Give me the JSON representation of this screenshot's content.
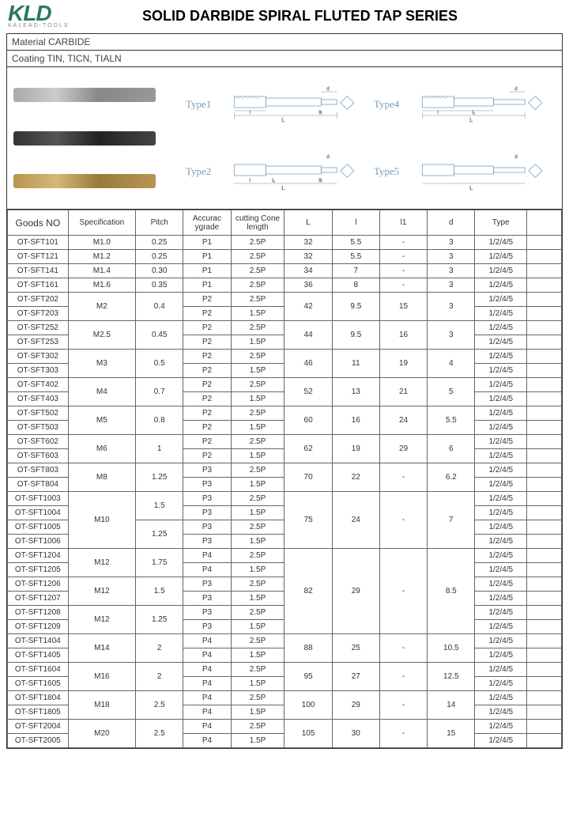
{
  "logo": {
    "main": "KLD",
    "sub": "KALEAD-TOOLS"
  },
  "title": "SOLID DARBIDE SPIRAL FLUTED TAP SERIES",
  "material": "Material  CARBIDE",
  "coating": "Coating  TIN,  TICN,  TIALN",
  "typeLabels": [
    "Type1",
    "Type4",
    "Type2",
    "Type5"
  ],
  "diagram_colors": {
    "schematic_stroke": "#7aa0c0",
    "dim_stroke": "#888"
  },
  "table": {
    "headers": [
      "Goods NO",
      "Specification",
      "Pitch",
      "Accurac ygrade",
      "cutting Cone length",
      "L",
      "l",
      "l1",
      "d",
      "Type",
      ""
    ],
    "col_classes": [
      "col-goods",
      "col-spec",
      "col-pitch",
      "col-acc",
      "col-cut",
      "col-L",
      "col-l",
      "col-l1",
      "col-d",
      "col-type",
      "col-last"
    ],
    "rows": [
      {
        "cells": [
          "OT-SFT101",
          "M1.0",
          "0.25",
          "P1",
          "2.5P",
          "32",
          "5.5",
          "-",
          "3",
          "1/2/4/5",
          ""
        ]
      },
      {
        "cells": [
          "OT-SFT121",
          "M1.2",
          "0.25",
          "P1",
          "2.5P",
          "32",
          "5.5",
          "-",
          "3",
          "1/2/4/5",
          ""
        ]
      },
      {
        "cells": [
          "OT-SFT141",
          "M1.4",
          "0.30",
          "P1",
          "2.5P",
          "34",
          "7",
          "-",
          "3",
          "1/2/4/5",
          ""
        ]
      },
      {
        "cells": [
          "OT-SFT161",
          "M1.6",
          "0.35",
          "P1",
          "2.5P",
          "36",
          "8",
          "-",
          "3",
          "1/2/4/5",
          ""
        ]
      },
      {
        "cells": [
          "OT-SFT202",
          {
            "v": "M2",
            "rs": 2
          },
          {
            "v": "0.4",
            "rs": 2
          },
          "P2",
          "2.5P",
          {
            "v": "42",
            "rs": 2
          },
          {
            "v": "9.5",
            "rs": 2
          },
          {
            "v": "15",
            "rs": 2
          },
          {
            "v": "3",
            "rs": 2
          },
          "1/2/4/5",
          ""
        ]
      },
      {
        "cells": [
          "OT-SFT203",
          null,
          null,
          "P2",
          "1.5P",
          null,
          null,
          null,
          null,
          "1/2/4/5",
          ""
        ]
      },
      {
        "cells": [
          "OT-SFT252",
          {
            "v": "M2.5",
            "rs": 2
          },
          {
            "v": "0.45",
            "rs": 2
          },
          "P2",
          "2.5P",
          {
            "v": "44",
            "rs": 2
          },
          {
            "v": "9.5",
            "rs": 2
          },
          {
            "v": "16",
            "rs": 2
          },
          {
            "v": "3",
            "rs": 2
          },
          "1/2/4/5",
          ""
        ]
      },
      {
        "cells": [
          "OT-SFT253",
          null,
          null,
          "P2",
          "1.5P",
          null,
          null,
          null,
          null,
          "1/2/4/5",
          ""
        ]
      },
      {
        "cells": [
          "OT-SFT302",
          {
            "v": "M3",
            "rs": 2
          },
          {
            "v": "0.5",
            "rs": 2
          },
          "P2",
          "2.5P",
          {
            "v": "46",
            "rs": 2
          },
          {
            "v": "11",
            "rs": 2
          },
          {
            "v": "19",
            "rs": 2
          },
          {
            "v": "4",
            "rs": 2
          },
          "1/2/4/5",
          ""
        ]
      },
      {
        "cells": [
          "OT-SFT303",
          null,
          null,
          "P2",
          "1.5P",
          null,
          null,
          null,
          null,
          "1/2/4/5",
          ""
        ]
      },
      {
        "cells": [
          "OT-SFT402",
          {
            "v": "M4",
            "rs": 2
          },
          {
            "v": "0.7",
            "rs": 2
          },
          "P2",
          "2.5P",
          {
            "v": "52",
            "rs": 2
          },
          {
            "v": "13",
            "rs": 2
          },
          {
            "v": "21",
            "rs": 2
          },
          {
            "v": "5",
            "rs": 2
          },
          "1/2/4/5",
          ""
        ]
      },
      {
        "cells": [
          "OT-SFT403",
          null,
          null,
          "P2",
          "1.5P",
          null,
          null,
          null,
          null,
          "1/2/4/5",
          ""
        ]
      },
      {
        "cells": [
          "OT-SFT502",
          {
            "v": "M5",
            "rs": 2
          },
          {
            "v": "0.8",
            "rs": 2
          },
          "P2",
          "2.5P",
          {
            "v": "60",
            "rs": 2
          },
          {
            "v": "16",
            "rs": 2
          },
          {
            "v": "24",
            "rs": 2
          },
          {
            "v": "5.5",
            "rs": 2
          },
          "1/2/4/5",
          ""
        ]
      },
      {
        "cells": [
          "OT-SFT503",
          null,
          null,
          "P2",
          "1.5P",
          null,
          null,
          null,
          null,
          "1/2/4/5",
          ""
        ]
      },
      {
        "cells": [
          "OT-SFT602",
          {
            "v": "M6",
            "rs": 2
          },
          {
            "v": "1",
            "rs": 2
          },
          "P2",
          "2.5P",
          {
            "v": "62",
            "rs": 2
          },
          {
            "v": "19",
            "rs": 2
          },
          {
            "v": "29",
            "rs": 2
          },
          {
            "v": "6",
            "rs": 2
          },
          "1/2/4/5",
          ""
        ]
      },
      {
        "cells": [
          "OT-SFT603",
          null,
          null,
          "P2",
          "1.5P",
          null,
          null,
          null,
          null,
          "1/2/4/5",
          ""
        ]
      },
      {
        "cells": [
          "OT-SFT803",
          {
            "v": "M8",
            "rs": 2
          },
          {
            "v": "1.25",
            "rs": 2
          },
          "P3",
          "2.5P",
          {
            "v": "70",
            "rs": 2
          },
          {
            "v": "22",
            "rs": 2
          },
          {
            "v": "-",
            "rs": 2
          },
          {
            "v": "6.2",
            "rs": 2
          },
          "1/2/4/5",
          ""
        ]
      },
      {
        "cells": [
          "OT-SFT804",
          null,
          null,
          "P3",
          "1.5P",
          null,
          null,
          null,
          null,
          "1/2/4/5",
          ""
        ]
      },
      {
        "cells": [
          "OT-SFT1003",
          {
            "v": "M10",
            "rs": 4
          },
          {
            "v": "1.5",
            "rs": 2
          },
          "P3",
          "2.5P",
          {
            "v": "75",
            "rs": 4
          },
          {
            "v": "24",
            "rs": 4
          },
          {
            "v": "-",
            "rs": 4
          },
          {
            "v": "7",
            "rs": 4
          },
          "1/2/4/5",
          ""
        ]
      },
      {
        "cells": [
          "OT-SFT1004",
          null,
          null,
          "P3",
          "1.5P",
          null,
          null,
          null,
          null,
          "1/2/4/5",
          ""
        ]
      },
      {
        "cells": [
          "OT-SFT1005",
          null,
          {
            "v": "1.25",
            "rs": 2
          },
          "P3",
          "2.5P",
          null,
          null,
          null,
          null,
          "1/2/4/5",
          ""
        ]
      },
      {
        "cells": [
          "OT-SFT1006",
          null,
          null,
          "P3",
          "1.5P",
          null,
          null,
          null,
          null,
          "1/2/4/5",
          ""
        ]
      },
      {
        "cells": [
          "OT-SFT1204",
          {
            "v": "M12",
            "rs": 2
          },
          {
            "v": "1.75",
            "rs": 2
          },
          "P4",
          "2.5P",
          {
            "v": "82",
            "rs": 6
          },
          {
            "v": "29",
            "rs": 6
          },
          {
            "v": "-",
            "rs": 6
          },
          {
            "v": "8.5",
            "rs": 6
          },
          "1/2/4/5",
          ""
        ]
      },
      {
        "cells": [
          "OT-SFT1205",
          null,
          null,
          "P4",
          "1.5P",
          null,
          null,
          null,
          null,
          "1/2/4/5",
          ""
        ]
      },
      {
        "cells": [
          "OT-SFT1206",
          {
            "v": "M12",
            "rs": 2
          },
          {
            "v": "1.5",
            "rs": 2
          },
          "P3",
          "2.5P",
          null,
          null,
          null,
          null,
          "1/2/4/5",
          ""
        ]
      },
      {
        "cells": [
          "OT-SFT1207",
          null,
          null,
          "P3",
          "1.5P",
          null,
          null,
          null,
          null,
          "1/2/4/5",
          ""
        ]
      },
      {
        "cells": [
          "OT-SFT1208",
          {
            "v": "M12",
            "rs": 2
          },
          {
            "v": "1.25",
            "rs": 2
          },
          "P3",
          "2.5P",
          null,
          null,
          null,
          null,
          "1/2/4/5",
          ""
        ]
      },
      {
        "cells": [
          "OT-SFT1209",
          null,
          null,
          "P3",
          "1.5P",
          null,
          null,
          null,
          null,
          "1/2/4/5",
          ""
        ]
      },
      {
        "cells": [
          "OT-SFT1404",
          {
            "v": "M14",
            "rs": 2
          },
          {
            "v": "2",
            "rs": 2
          },
          "P4",
          "2.5P",
          {
            "v": "88",
            "rs": 2
          },
          {
            "v": "25",
            "rs": 2
          },
          {
            "v": "-",
            "rs": 2
          },
          {
            "v": "10.5",
            "rs": 2
          },
          "1/2/4/5",
          ""
        ]
      },
      {
        "cells": [
          "OT-SFT1405",
          null,
          null,
          "P4",
          "1.5P",
          null,
          null,
          null,
          null,
          "1/2/4/5",
          ""
        ]
      },
      {
        "cells": [
          "OT-SFT1604",
          {
            "v": "M16",
            "rs": 2
          },
          {
            "v": "2",
            "rs": 2
          },
          "P4",
          "2.5P",
          {
            "v": "95",
            "rs": 2
          },
          {
            "v": "27",
            "rs": 2
          },
          {
            "v": "-",
            "rs": 2
          },
          {
            "v": "12.5",
            "rs": 2
          },
          "1/2/4/5",
          ""
        ]
      },
      {
        "cells": [
          "OT-SFT1605",
          null,
          null,
          "P4",
          "1.5P",
          null,
          null,
          null,
          null,
          "1/2/4/5",
          ""
        ]
      },
      {
        "cells": [
          "OT-SFT1804",
          {
            "v": "M18",
            "rs": 2
          },
          {
            "v": "2.5",
            "rs": 2
          },
          "P4",
          "2.5P",
          {
            "v": "100",
            "rs": 2
          },
          {
            "v": "29",
            "rs": 2
          },
          {
            "v": "-",
            "rs": 2
          },
          {
            "v": "14",
            "rs": 2
          },
          "1/2/4/5",
          ""
        ]
      },
      {
        "cells": [
          "OT-SFT1805",
          null,
          null,
          "P4",
          "1.5P",
          null,
          null,
          null,
          null,
          "1/2/4/5",
          ""
        ]
      },
      {
        "cells": [
          "OT-SFT2004",
          {
            "v": "M20",
            "rs": 2
          },
          {
            "v": "2.5",
            "rs": 2
          },
          "P4",
          "2.5P",
          {
            "v": "105",
            "rs": 2
          },
          {
            "v": "30",
            "rs": 2
          },
          {
            "v": "-",
            "rs": 2
          },
          {
            "v": "15",
            "rs": 2
          },
          "1/2/4/5",
          ""
        ]
      },
      {
        "cells": [
          "OT-SFT2005",
          null,
          null,
          "P4",
          "1.5P",
          null,
          null,
          null,
          null,
          "1/2/4/5",
          ""
        ]
      }
    ]
  }
}
